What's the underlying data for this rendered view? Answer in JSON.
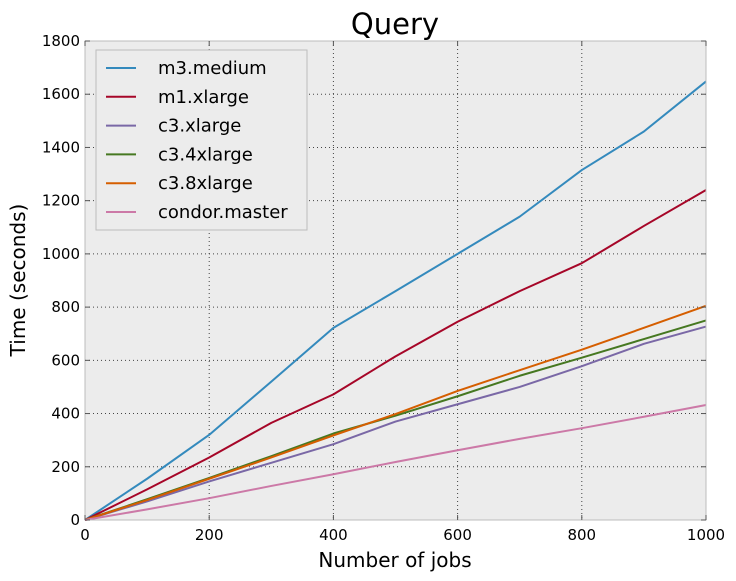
{
  "chart_data": {
    "type": "line",
    "title": "Query",
    "xlabel": "Number of jobs",
    "ylabel": "Time (seconds)",
    "xlim": [
      0,
      1000
    ],
    "ylim": [
      0,
      1800
    ],
    "xticks": [
      0,
      200,
      400,
      600,
      800,
      1000
    ],
    "yticks": [
      0,
      200,
      400,
      600,
      800,
      1000,
      1200,
      1400,
      1600,
      1800
    ],
    "xtick_labels": [
      "0",
      "200",
      "400",
      "600",
      "800",
      "1000"
    ],
    "ytick_labels": [
      "0",
      "200",
      "400",
      "600",
      "800",
      "1000",
      "1200",
      "1400",
      "1600",
      "1800"
    ],
    "grid": true,
    "legend_position": "top-left",
    "background": "#ececec",
    "x": [
      0,
      100,
      200,
      300,
      400,
      500,
      600,
      700,
      800,
      900,
      1000
    ],
    "series": [
      {
        "name": "m3.medium",
        "color": "#348abd",
        "values": [
          0,
          155,
          320,
          520,
          722,
          860,
          1000,
          1140,
          1315,
          1460,
          1648
        ]
      },
      {
        "name": "m1.xlarge",
        "color": "#a60628",
        "values": [
          0,
          115,
          235,
          365,
          472,
          615,
          745,
          860,
          965,
          1105,
          1240
        ]
      },
      {
        "name": "c3.xlarge",
        "color": "#7a68a6",
        "values": [
          0,
          70,
          145,
          215,
          285,
          370,
          435,
          500,
          578,
          662,
          727
        ]
      },
      {
        "name": "c3.4xlarge",
        "color": "#467821",
        "values": [
          0,
          78,
          158,
          240,
          325,
          392,
          465,
          542,
          610,
          680,
          750
        ]
      },
      {
        "name": "c3.8xlarge",
        "color": "#d55e00",
        "values": [
          0,
          75,
          155,
          235,
          318,
          398,
          485,
          563,
          640,
          722,
          805
        ]
      },
      {
        "name": "condor.master",
        "color": "#cc79a7",
        "values": [
          0,
          40,
          82,
          128,
          172,
          218,
          262,
          305,
          345,
          388,
          432
        ]
      }
    ]
  }
}
